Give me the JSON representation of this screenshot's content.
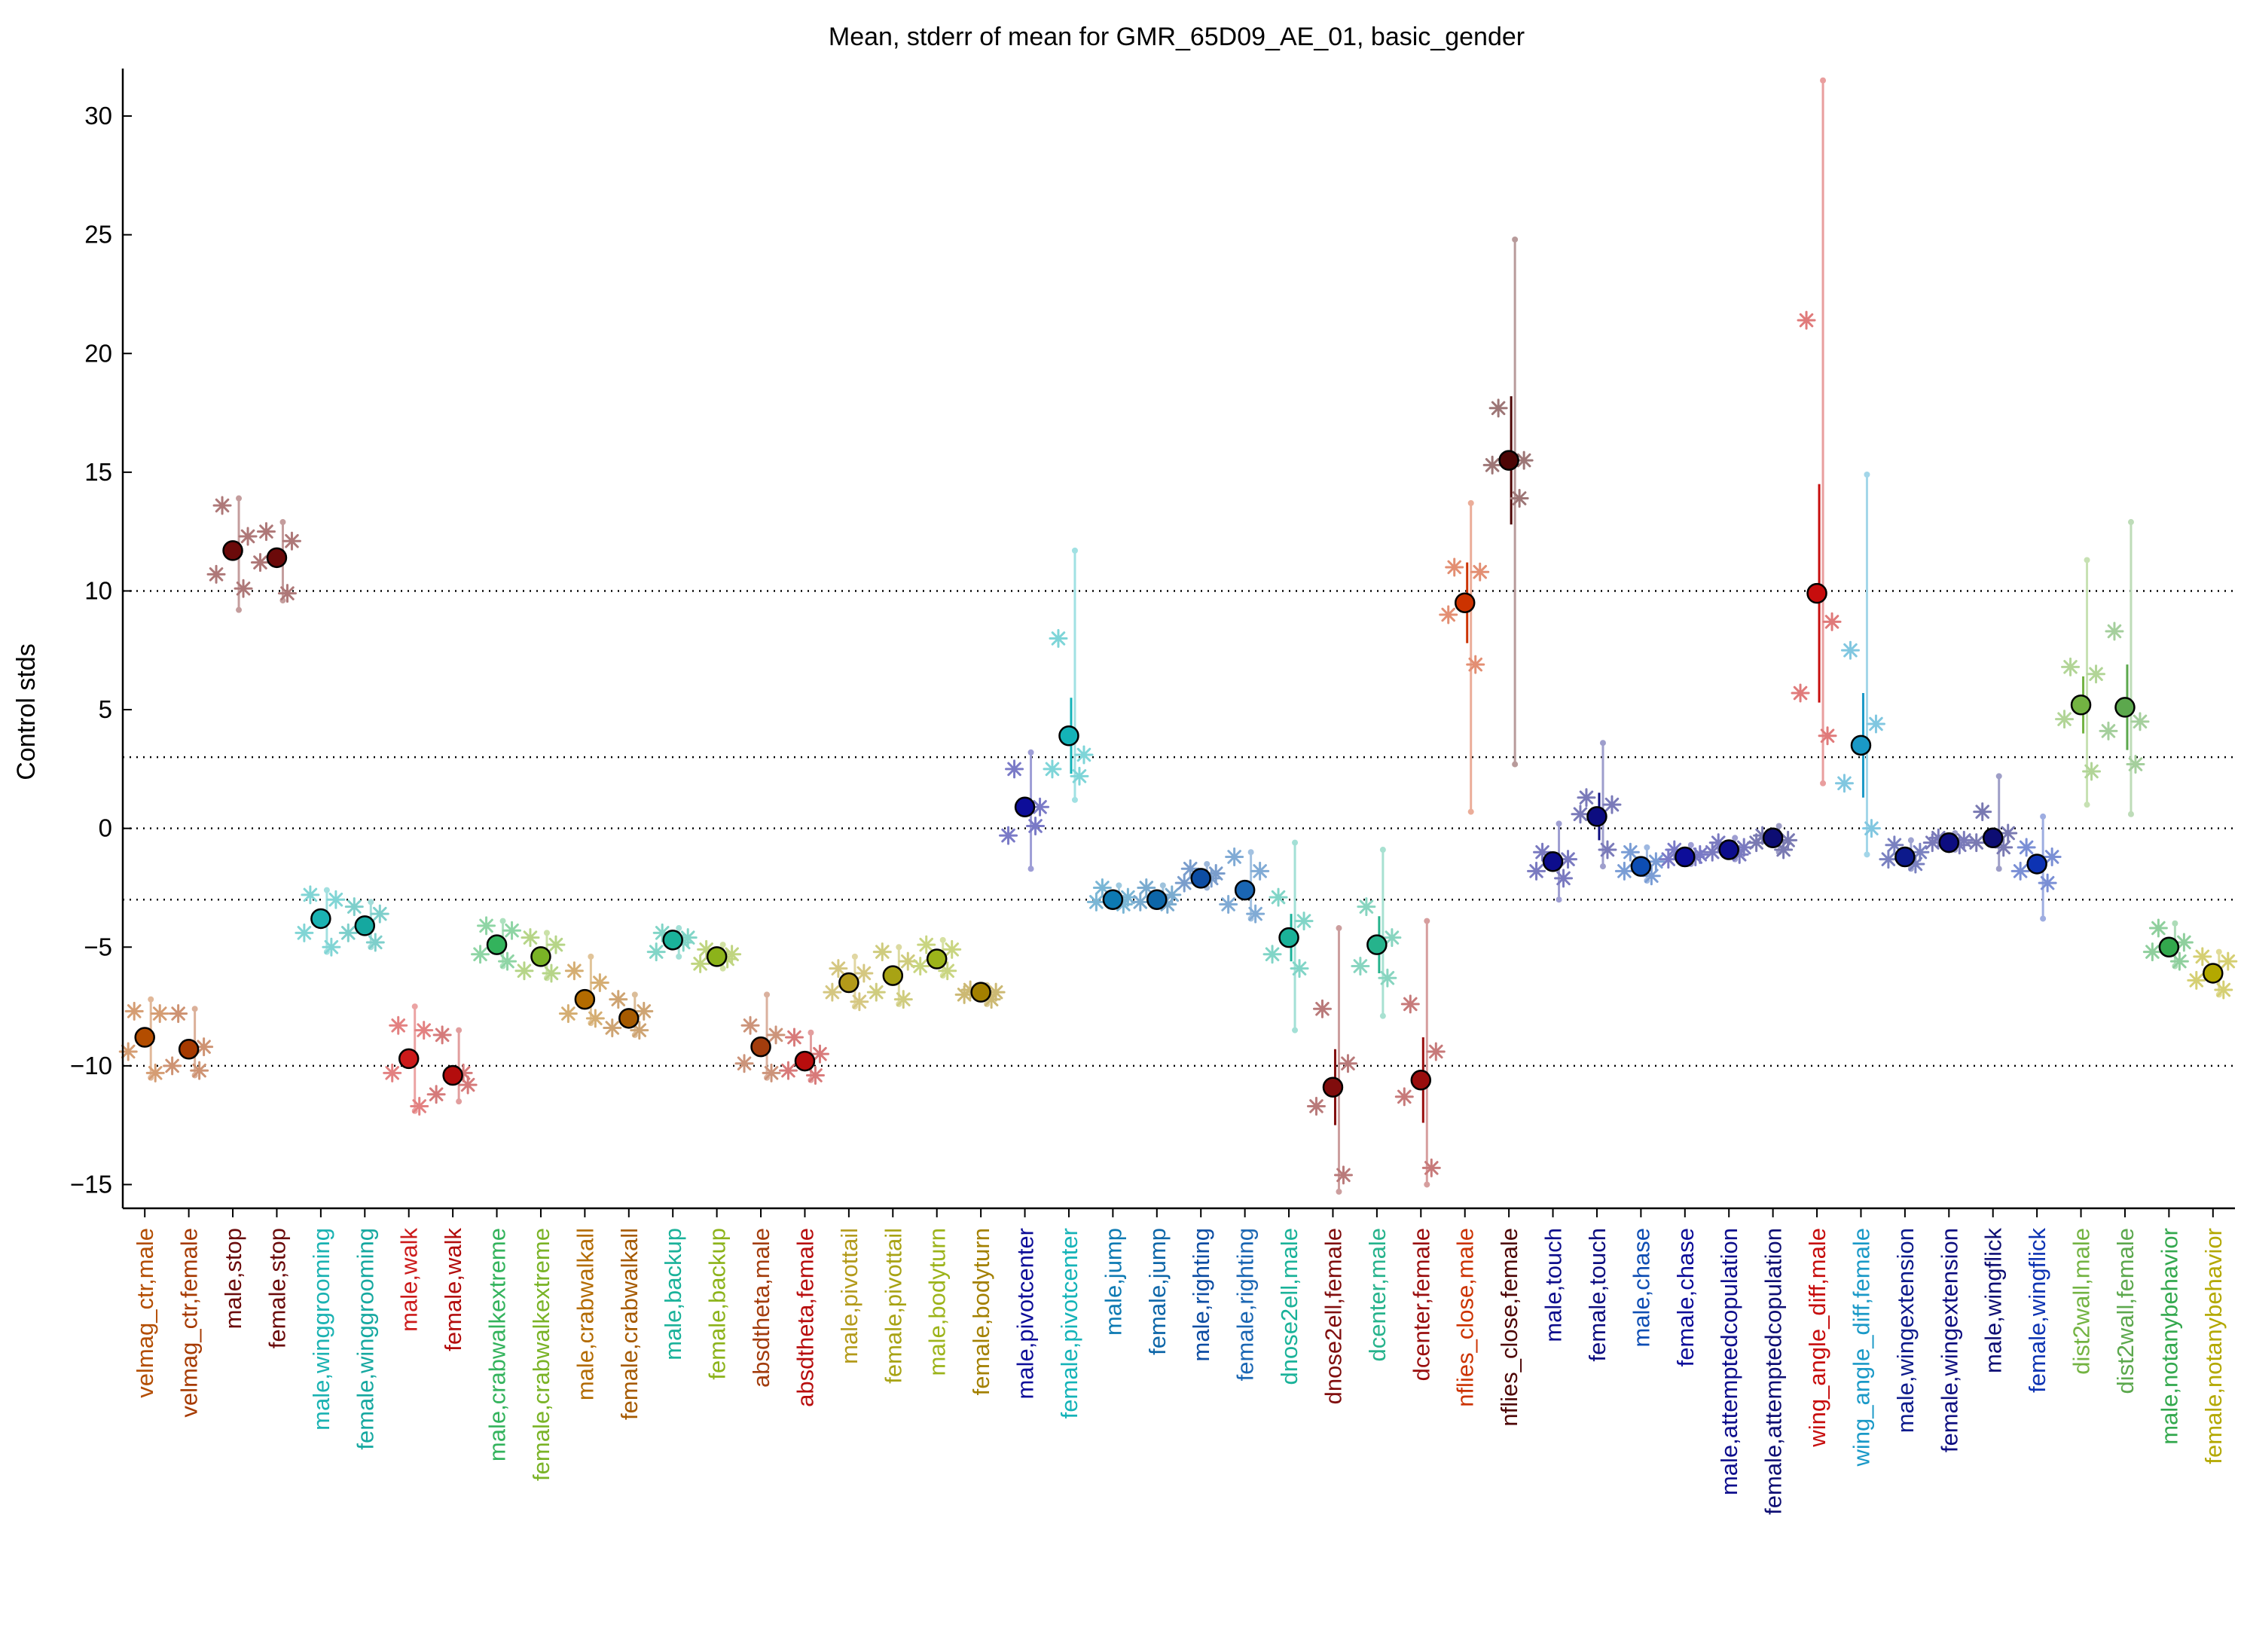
{
  "chart_data": {
    "type": "scatter",
    "title": "Mean, stderr of mean for GMR_65D09_AE_01, basic_gender",
    "ylabel": "Control stds",
    "xlabel": "",
    "ylim": [
      -16,
      32
    ],
    "yticks": [
      -15,
      -10,
      -5,
      0,
      5,
      10,
      15,
      20,
      25,
      30
    ],
    "reference_lines": [
      -10,
      -3,
      0,
      3,
      10
    ],
    "grid": false,
    "legend": "none",
    "points": [
      {
        "label": "velmag_ctr,male",
        "mean": -8.8,
        "err": 0.0,
        "color": "#b34d00",
        "reps": [
          -7.7,
          -7.8,
          -9.4,
          -10.3
        ],
        "ext": [
          -7.2,
          -10.5
        ]
      },
      {
        "label": "velmag_ctr,female",
        "mean": -9.3,
        "err": 0.0,
        "color": "#a63a00",
        "reps": [
          -7.8,
          -9.2,
          -10.0,
          -10.2
        ],
        "ext": [
          -7.6,
          -10.4
        ]
      },
      {
        "label": "male,stop",
        "mean": 11.7,
        "err": 0.3,
        "color": "#6b0a0a",
        "reps": [
          13.6,
          12.3,
          10.7,
          10.1
        ],
        "ext": [
          13.9,
          9.2
        ]
      },
      {
        "label": "female,stop",
        "mean": 11.4,
        "err": 0.3,
        "color": "#6b0a0a",
        "reps": [
          12.5,
          12.1,
          11.2,
          9.9
        ],
        "ext": [
          12.9,
          9.6
        ]
      },
      {
        "label": "male,winggrooming",
        "mean": -3.8,
        "err": 0.0,
        "color": "#1ab2b2",
        "reps": [
          -2.8,
          -3.0,
          -4.4,
          -5.0
        ],
        "ext": [
          -2.6,
          -5.2
        ]
      },
      {
        "label": "female,winggrooming",
        "mean": -4.1,
        "err": 0.0,
        "color": "#15a8a0",
        "reps": [
          -3.3,
          -3.6,
          -4.4,
          -4.8
        ],
        "ext": [
          -3.1,
          -5.0
        ]
      },
      {
        "label": "male,walk",
        "mean": -9.7,
        "err": 0.0,
        "color": "#cc1a1a",
        "reps": [
          -8.3,
          -8.5,
          -10.3,
          -11.7
        ],
        "ext": [
          -7.5,
          -11.9
        ]
      },
      {
        "label": "female,walk",
        "mean": -10.4,
        "err": 0.0,
        "color": "#b30d0d",
        "reps": [
          -8.7,
          -10.8,
          -11.2,
          -10.3
        ],
        "ext": [
          -8.5,
          -11.5
        ]
      },
      {
        "label": "male,crabwalkextreme",
        "mean": -4.9,
        "err": 0.0,
        "color": "#33b35c",
        "reps": [
          -4.1,
          -4.3,
          -5.3,
          -5.6
        ],
        "ext": [
          -3.9,
          -5.8
        ]
      },
      {
        "label": "female,crabwalkextreme",
        "mean": -5.4,
        "err": 0.0,
        "color": "#7ab326",
        "reps": [
          -4.6,
          -4.9,
          -6.0,
          -6.1
        ],
        "ext": [
          -4.4,
          -6.3
        ]
      },
      {
        "label": "male,crabwalkall",
        "mean": -7.2,
        "err": 0.0,
        "color": "#b36b00",
        "reps": [
          -6.0,
          -6.5,
          -7.8,
          -8.0
        ],
        "ext": [
          -5.4,
          -8.2
        ]
      },
      {
        "label": "female,crabwalkall",
        "mean": -8.0,
        "err": 0.0,
        "color": "#a65a00",
        "reps": [
          -7.2,
          -7.7,
          -8.4,
          -8.5
        ],
        "ext": [
          -7.0,
          -8.7
        ]
      },
      {
        "label": "male,backup",
        "mean": -4.7,
        "err": 0.0,
        "color": "#1ab29a",
        "reps": [
          -4.4,
          -4.6,
          -5.2,
          -4.8
        ],
        "ext": [
          -4.2,
          -5.4
        ]
      },
      {
        "label": "female,backup",
        "mean": -5.4,
        "err": 0.0,
        "color": "#8cb31a",
        "reps": [
          -5.1,
          -5.3,
          -5.7,
          -5.5
        ],
        "ext": [
          -4.9,
          -5.9
        ]
      },
      {
        "label": "absdtheta,male",
        "mean": -9.2,
        "err": 0.0,
        "color": "#a33d0d",
        "reps": [
          -8.3,
          -8.7,
          -9.9,
          -10.3
        ],
        "ext": [
          -7.0,
          -10.5
        ]
      },
      {
        "label": "absdtheta,female",
        "mean": -9.8,
        "err": 0.0,
        "color": "#b80d0d",
        "reps": [
          -8.8,
          -9.5,
          -10.2,
          -10.4
        ],
        "ext": [
          -8.6,
          -10.6
        ]
      },
      {
        "label": "male,pivottail",
        "mean": -6.5,
        "err": 0.0,
        "color": "#b39a1a",
        "reps": [
          -5.9,
          -6.1,
          -6.9,
          -7.3
        ],
        "ext": [
          -5.4,
          -7.5
        ]
      },
      {
        "label": "female,pivottail",
        "mean": -6.2,
        "err": 0.0,
        "color": "#a8a314",
        "reps": [
          -5.2,
          -5.6,
          -6.9,
          -7.2
        ],
        "ext": [
          -5.0,
          -7.4
        ]
      },
      {
        "label": "male,bodyturn",
        "mean": -5.5,
        "err": 0.0,
        "color": "#9cb31a",
        "reps": [
          -4.9,
          -5.1,
          -5.8,
          -6.0
        ],
        "ext": [
          -4.7,
          -6.2
        ]
      },
      {
        "label": "female,bodyturn",
        "mean": -6.9,
        "err": 0.0,
        "color": "#a38000",
        "reps": [
          -6.8,
          -6.9,
          -7.0,
          -7.2
        ],
        "ext": [
          -6.6,
          -7.4
        ]
      },
      {
        "label": "male,pivotcenter",
        "mean": 0.9,
        "err": 0.0,
        "color": "#0d0d99",
        "reps": [
          2.5,
          0.9,
          -0.3,
          0.1
        ],
        "ext": [
          3.2,
          -1.7
        ]
      },
      {
        "label": "female,pivotcenter",
        "mean": 3.9,
        "err": 1.6,
        "color": "#14b3b8",
        "reps": [
          8.0,
          3.1,
          2.5,
          2.2
        ],
        "ext": [
          11.7,
          1.2
        ]
      },
      {
        "label": "male,jump",
        "mean": -3.0,
        "err": 0.0,
        "color": "#0d7ab3",
        "reps": [
          -2.5,
          -2.9,
          -3.1,
          -3.2
        ],
        "ext": [
          -2.4,
          -3.3
        ]
      },
      {
        "label": "female,jump",
        "mean": -3.0,
        "err": 0.0,
        "color": "#0d66a8",
        "reps": [
          -2.5,
          -2.8,
          -3.1,
          -3.2
        ],
        "ext": [
          -2.4,
          -3.3
        ]
      },
      {
        "label": "male,righting",
        "mean": -2.1,
        "err": 0.0,
        "color": "#0d4da3",
        "reps": [
          -1.7,
          -1.9,
          -2.3,
          -2.1
        ],
        "ext": [
          -1.5,
          -2.5
        ]
      },
      {
        "label": "female,righting",
        "mean": -2.6,
        "err": 0.0,
        "color": "#1a66b3",
        "reps": [
          -1.2,
          -1.8,
          -3.2,
          -3.6
        ],
        "ext": [
          -1.0,
          -3.8
        ]
      },
      {
        "label": "dnose2ell,male",
        "mean": -4.6,
        "err": 1.0,
        "color": "#1ab299",
        "reps": [
          -2.9,
          -3.9,
          -5.3,
          -5.9
        ],
        "ext": [
          -0.6,
          -8.5
        ]
      },
      {
        "label": "dnose2ell,female",
        "mean": -10.9,
        "err": 1.6,
        "color": "#800d0d",
        "reps": [
          -7.6,
          -9.9,
          -11.7,
          -14.6
        ],
        "ext": [
          -4.2,
          -15.3
        ]
      },
      {
        "label": "dcenter,male",
        "mean": -4.9,
        "err": 1.2,
        "color": "#26b38c",
        "reps": [
          -3.3,
          -4.6,
          -5.8,
          -6.3
        ],
        "ext": [
          -0.9,
          -7.9
        ]
      },
      {
        "label": "dcenter,female",
        "mean": -10.6,
        "err": 1.8,
        "color": "#990d0d",
        "reps": [
          -7.4,
          -9.4,
          -11.3,
          -14.3
        ],
        "ext": [
          -3.9,
          -15.0
        ]
      },
      {
        "label": "nflies_close,male",
        "mean": 9.5,
        "err": 1.7,
        "color": "#cc3300",
        "reps": [
          11.0,
          10.8,
          9.0,
          6.9
        ],
        "ext": [
          13.7,
          0.7
        ]
      },
      {
        "label": "nflies_close,female",
        "mean": 15.5,
        "err": 2.7,
        "color": "#4d0505",
        "reps": [
          17.7,
          15.5,
          15.3,
          13.9
        ],
        "ext": [
          24.8,
          2.7
        ]
      },
      {
        "label": "male,touch",
        "mean": -1.4,
        "err": 0.0,
        "color": "#0d0d8c",
        "reps": [
          -1.0,
          -1.3,
          -1.8,
          -2.1
        ],
        "ext": [
          0.2,
          -3.0
        ]
      },
      {
        "label": "female,touch",
        "mean": 0.5,
        "err": 1.0,
        "color": "#0d0d80",
        "reps": [
          1.3,
          1.0,
          0.6,
          -0.9
        ],
        "ext": [
          3.6,
          -1.6
        ]
      },
      {
        "label": "male,chase",
        "mean": -1.6,
        "err": 0.0,
        "color": "#0d4db3",
        "reps": [
          -1.0,
          -1.4,
          -1.8,
          -2.0
        ],
        "ext": [
          -0.8,
          -2.2
        ]
      },
      {
        "label": "female,chase",
        "mean": -1.2,
        "err": 0.0,
        "color": "#0d0d99",
        "reps": [
          -0.9,
          -1.1,
          -1.3,
          -1.2
        ],
        "ext": [
          -0.7,
          -1.5
        ]
      },
      {
        "label": "male,attemptedcopulation",
        "mean": -0.9,
        "err": 0.0,
        "color": "#0d0d8c",
        "reps": [
          -0.6,
          -0.8,
          -1.0,
          -1.1
        ],
        "ext": [
          -0.4,
          -1.3
        ]
      },
      {
        "label": "female,attemptedcopulation",
        "mean": -0.4,
        "err": 0.0,
        "color": "#0d0d73",
        "reps": [
          -0.3,
          -0.5,
          -0.6,
          -0.9
        ],
        "ext": [
          0.1,
          -1.0
        ]
      },
      {
        "label": "wing_angle_diff,male",
        "mean": 9.9,
        "err": 4.6,
        "color": "#c70d0d",
        "reps": [
          21.4,
          8.7,
          5.7,
          3.9
        ],
        "ext": [
          31.5,
          1.9
        ]
      },
      {
        "label": "wing_angle_diff,female",
        "mean": 3.5,
        "err": 2.2,
        "color": "#1a99c7",
        "reps": [
          7.5,
          4.4,
          1.9,
          0.0
        ],
        "ext": [
          14.9,
          -1.1
        ]
      },
      {
        "label": "male,wingextension",
        "mean": -1.2,
        "err": 0.0,
        "color": "#0d1a8c",
        "reps": [
          -0.7,
          -1.0,
          -1.3,
          -1.5
        ],
        "ext": [
          -0.5,
          -1.7
        ]
      },
      {
        "label": "female,wingextension",
        "mean": -0.6,
        "err": 0.0,
        "color": "#0d0d80",
        "reps": [
          -0.4,
          -0.5,
          -0.6,
          -0.7
        ],
        "ext": [
          -0.2,
          -0.9
        ]
      },
      {
        "label": "male,wingflick",
        "mean": -0.4,
        "err": 0.0,
        "color": "#0d0d73",
        "reps": [
          0.7,
          -0.2,
          -0.6,
          -0.8
        ],
        "ext": [
          2.2,
          -1.7
        ]
      },
      {
        "label": "female,wingflick",
        "mean": -1.5,
        "err": 0.0,
        "color": "#0d33b3",
        "reps": [
          -0.8,
          -1.2,
          -1.8,
          -2.3
        ],
        "ext": [
          0.5,
          -3.8
        ]
      },
      {
        "label": "dist2wall,male",
        "mean": 5.2,
        "err": 1.2,
        "color": "#73b342",
        "reps": [
          6.8,
          6.5,
          4.6,
          2.4
        ],
        "ext": [
          11.3,
          1.0
        ]
      },
      {
        "label": "dist2wall,female",
        "mean": 5.1,
        "err": 1.8,
        "color": "#5ca84d",
        "reps": [
          8.3,
          4.5,
          4.1,
          2.7
        ],
        "ext": [
          12.9,
          0.6
        ]
      },
      {
        "label": "male,notanybehavior",
        "mean": -5.0,
        "err": 0.0,
        "color": "#33a84d",
        "reps": [
          -4.2,
          -4.8,
          -5.2,
          -5.6
        ],
        "ext": [
          -4.0,
          -5.8
        ]
      },
      {
        "label": "female,notanybehavior",
        "mean": -6.1,
        "err": 0.0,
        "color": "#b3a800",
        "reps": [
          -5.4,
          -5.6,
          -6.4,
          -6.8
        ],
        "ext": [
          -5.2,
          -7.0
        ]
      }
    ]
  }
}
